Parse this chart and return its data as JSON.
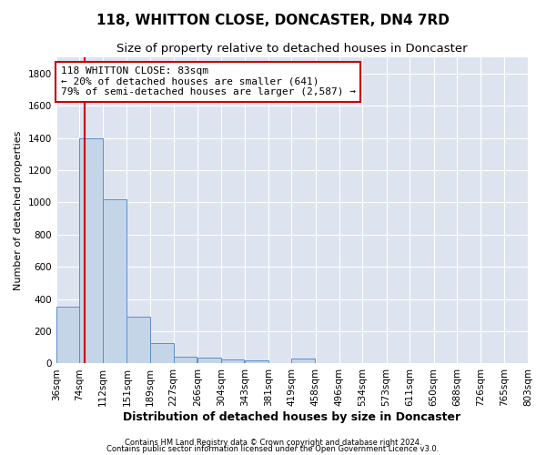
{
  "title": "118, WHITTON CLOSE, DONCASTER, DN4 7RD",
  "subtitle": "Size of property relative to detached houses in Doncaster",
  "xlabel": "Distribution of detached houses by size in Doncaster",
  "ylabel": "Number of detached properties",
  "footnote1": "Contains HM Land Registry data © Crown copyright and database right 2024.",
  "footnote2": "Contains public sector information licensed under the Open Government Licence v3.0.",
  "annotation_line1": "118 WHITTON CLOSE: 83sqm",
  "annotation_line2": "← 20% of detached houses are smaller (641)",
  "annotation_line3": "79% of semi-detached houses are larger (2,587) →",
  "bar_color": "#c5d5e8",
  "bar_edge_color": "#5b8fc9",
  "red_line_color": "#cc0000",
  "subject_size": 83,
  "bin_edges": [
    36,
    74,
    112,
    151,
    189,
    227,
    266,
    304,
    343,
    381,
    419,
    458,
    496,
    534,
    573,
    611,
    650,
    688,
    726,
    765,
    803
  ],
  "bar_heights": [
    350,
    1400,
    1020,
    290,
    125,
    40,
    37,
    25,
    18,
    0,
    30,
    0,
    0,
    0,
    0,
    0,
    0,
    0,
    0,
    0
  ],
  "ylim": [
    0,
    1900
  ],
  "yticks": [
    0,
    200,
    400,
    600,
    800,
    1000,
    1200,
    1400,
    1600,
    1800
  ],
  "bg_color": "#dde4f0",
  "grid_color": "#ffffff",
  "title_fontsize": 11,
  "subtitle_fontsize": 9.5,
  "ylabel_fontsize": 8,
  "xlabel_fontsize": 9,
  "tick_fontsize": 7.5,
  "annotation_fontsize": 8,
  "footnote_fontsize": 6
}
